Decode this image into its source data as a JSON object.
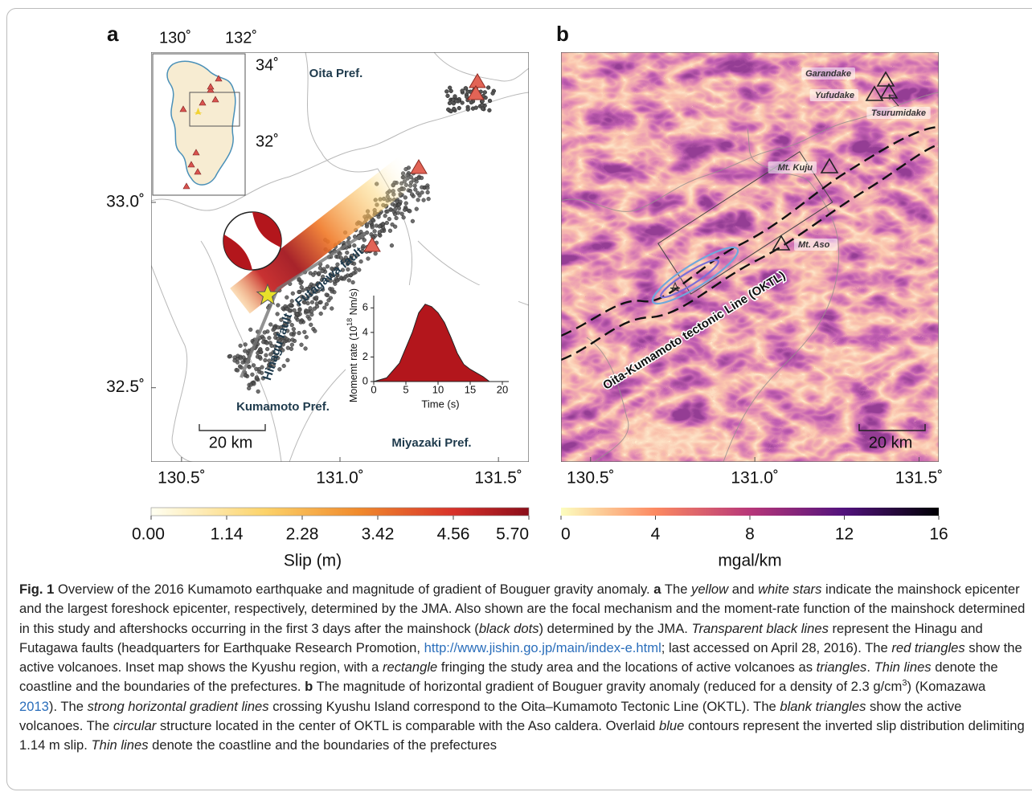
{
  "panel_a": {
    "label": "a",
    "xlim": [
      130.404,
      131.596
    ],
    "ylim": [
      32.3,
      33.405
    ],
    "xticks": [
      {
        "value": 130.5,
        "label": "130.5˚"
      },
      {
        "value": 131.0,
        "label": "131.0˚"
      },
      {
        "value": 131.5,
        "label": "131.5˚"
      }
    ],
    "yticks": [
      {
        "value": 33.0,
        "label": "33.0˚"
      },
      {
        "value": 32.5,
        "label": "32.5˚"
      }
    ],
    "inset_ticks": [
      "130˚",
      "132˚",
      "34˚",
      "32˚"
    ],
    "regions": [
      "Oita Pref.",
      "Kumamoto Pref.",
      "Miyazaki Pref."
    ],
    "faults": [
      "Hinagu fault",
      "Futagawa fault"
    ],
    "scale_bar": "20 km",
    "moment_rate": {
      "type": "area",
      "y_label": {
        "pre": "Momemt rate (10",
        "sup": "18",
        "post": " Nm/s)"
      },
      "x_label": "Time (s)",
      "x": [
        0,
        2,
        4,
        6,
        7,
        8,
        9,
        10,
        11,
        12,
        13,
        14,
        15,
        16,
        17,
        18
      ],
      "values": [
        0,
        0.3,
        1.5,
        4.0,
        5.6,
        6.3,
        6.1,
        5.6,
        4.8,
        3.6,
        2.3,
        1.4,
        1.0,
        0.7,
        0.4,
        0
      ],
      "color": "#b3161c",
      "xlim": [
        0,
        21
      ],
      "ylim": [
        0,
        7
      ],
      "xticks": [
        0,
        5,
        10,
        15,
        20
      ],
      "yticks": [
        0,
        2,
        4,
        6
      ]
    },
    "colorbar": {
      "title": "Slip (m)",
      "lim": [
        0,
        5.7
      ],
      "ticks": [
        {
          "value": 0,
          "label": "0.00"
        },
        1.14,
        2.28,
        3.42,
        4.56,
        {
          "value": 5.7,
          "label": "5.70"
        }
      ]
    }
  },
  "panel_b": {
    "label": "b",
    "xlim": [
      130.41,
      131.56
    ],
    "xticks": [
      {
        "value": 130.5,
        "label": "130.5˚"
      },
      {
        "value": 131.0,
        "label": "131.0˚"
      },
      {
        "value": 131.5,
        "label": "131.5˚"
      }
    ],
    "volcanoes": [
      "Garandake",
      "Yufudake",
      "Tsurumidake",
      "Mt. Kuju",
      "Mt. Aso"
    ],
    "fault_line": "Oita-Kumamoto tectonic Line (OKTL)",
    "scale_bar": "20 km",
    "colorbar": {
      "title": "mgal/km",
      "lim": [
        0,
        16
      ],
      "ticks": [
        0,
        4,
        8,
        12,
        16
      ]
    }
  },
  "caption": {
    "runs": [
      {
        "t": "Fig. 1",
        "s": "b"
      },
      " Overview of the 2016 Kumamoto earthquake and magnitude of gradient of Bouguer gravity anomaly. ",
      {
        "t": "a",
        "s": "b"
      },
      " The ",
      {
        "t": "yellow",
        "s": "i"
      },
      " and ",
      {
        "t": "white stars",
        "s": "i"
      },
      " indicate the mainshock epicenter and the largest foreshock epicenter, respectively, determined by the JMA. Also shown are the focal mechanism and the moment-rate function of the mainshock determined in this study and aftershocks occurring in the first 3 days after the mainshock (",
      {
        "t": "black dots",
        "s": "i"
      },
      ") determined by the JMA. ",
      {
        "t": "Transparent black lines",
        "s": "i"
      },
      " represent the Hinagu and Futagawa faults (headquarters for Earthquake Research Promotion, ",
      {
        "t": "http://www.jishin.go.jp/main/index-e.html",
        "s": "link"
      },
      "; last accessed on April 28, 2016). The ",
      {
        "t": "red triangles",
        "s": "i"
      },
      " show the active volcanoes. Inset map shows the Kyushu region, with a ",
      {
        "t": "rectangle",
        "s": "i"
      },
      " fringing the study area and the locations of active volcanoes as ",
      {
        "t": "triangles",
        "s": "i"
      },
      ". ",
      {
        "t": "Thin lines",
        "s": "i"
      },
      " denote the coastline and the boundaries of the prefectures. ",
      {
        "t": "b",
        "s": "b"
      },
      " The magnitude of horizontal gradient of Bouguer gravity anomaly (reduced for a density of 2.3 g/cm",
      {
        "t": "3",
        "s": "sup"
      },
      ") (Komazawa ",
      {
        "t": "2013",
        "s": "link"
      },
      "). The ",
      {
        "t": "strong horizontal gradient lines",
        "s": "i"
      },
      " crossing Kyushu Island correspond to the Oita–Kumamoto Tectonic Line (OKTL). The ",
      {
        "t": "blank triangles",
        "s": "i"
      },
      " show the active volcanoes. The ",
      {
        "t": "circular",
        "s": "i"
      },
      " structure located in the center of OKTL is comparable with the Aso caldera. Overlaid ",
      {
        "t": "blue",
        "s": "i"
      },
      " contours represent the inverted slip distribution delimiting 1.14 m slip. ",
      {
        "t": "Thin lines",
        "s": "i"
      },
      " denote the coastline and the boundaries of the prefectures"
    ]
  }
}
